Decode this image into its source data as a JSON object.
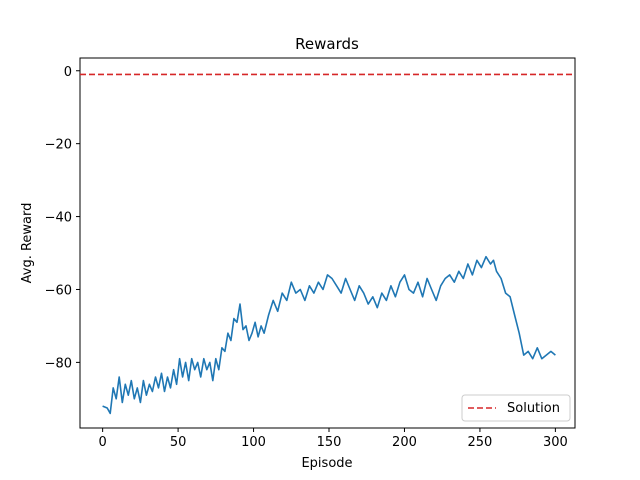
{
  "chart_data": {
    "type": "line",
    "title": "Rewards",
    "xlabel": "Episode",
    "ylabel": "Avg. Reward",
    "xlim": [
      -15,
      313
    ],
    "ylim": [
      -98,
      3.5
    ],
    "xticks": [
      0,
      50,
      100,
      150,
      200,
      250,
      300
    ],
    "yticks": [
      0,
      -20,
      -40,
      -60,
      -80
    ],
    "grid": false,
    "legend_position": "lower-right",
    "series": [
      {
        "name": "Avg. Reward",
        "color": "#1f77b4",
        "style": "solid",
        "x": [
          0,
          3,
          5,
          7,
          9,
          11,
          13,
          15,
          17,
          19,
          21,
          23,
          25,
          27,
          29,
          31,
          33,
          35,
          37,
          39,
          41,
          43,
          45,
          47,
          49,
          51,
          53,
          55,
          57,
          59,
          61,
          63,
          65,
          67,
          69,
          71,
          73,
          75,
          77,
          79,
          81,
          83,
          85,
          87,
          89,
          91,
          93,
          95,
          97,
          99,
          101,
          103,
          105,
          107,
          110,
          113,
          116,
          119,
          122,
          125,
          128,
          131,
          134,
          137,
          140,
          143,
          146,
          149,
          152,
          155,
          158,
          161,
          164,
          167,
          170,
          173,
          176,
          179,
          182,
          185,
          188,
          191,
          194,
          197,
          200,
          203,
          206,
          209,
          212,
          215,
          218,
          221,
          224,
          227,
          230,
          233,
          236,
          239,
          242,
          245,
          248,
          251,
          254,
          257,
          259,
          261,
          264,
          267,
          270,
          273,
          276,
          279,
          282,
          285,
          288,
          291,
          294,
          297,
          300
        ],
        "y": [
          -92,
          -92.5,
          -94,
          -87,
          -90,
          -84,
          -91,
          -86,
          -89,
          -85,
          -90,
          -87,
          -91,
          -85,
          -89,
          -86,
          -88,
          -84,
          -87,
          -83,
          -88,
          -84,
          -87,
          -82,
          -86,
          -79,
          -84,
          -80,
          -85,
          -79,
          -82,
          -80,
          -84,
          -79,
          -82,
          -80,
          -85,
          -79,
          -82,
          -76,
          -77,
          -72,
          -74,
          -68,
          -69,
          -64,
          -71,
          -70,
          -74,
          -72,
          -69,
          -73,
          -70,
          -72,
          -67,
          -63,
          -66,
          -61,
          -63,
          -58,
          -61,
          -60,
          -63,
          -59,
          -61,
          -58,
          -60,
          -56,
          -57,
          -59,
          -61,
          -57,
          -60,
          -63,
          -59,
          -61,
          -64,
          -62,
          -65,
          -61,
          -63,
          -59,
          -62,
          -58,
          -56,
          -60,
          -61,
          -58,
          -62,
          -57,
          -60,
          -63,
          -59,
          -57,
          -56,
          -58,
          -55,
          -57,
          -53,
          -56,
          -52,
          -54,
          -51,
          -53,
          -52,
          -55,
          -57,
          -61,
          -62,
          -67,
          -72,
          -78,
          -77,
          -79,
          -76,
          -79,
          -78,
          -77,
          -78
        ]
      },
      {
        "name": "Solution",
        "color": "#d62728",
        "style": "dashed",
        "y_const": -1
      }
    ]
  }
}
